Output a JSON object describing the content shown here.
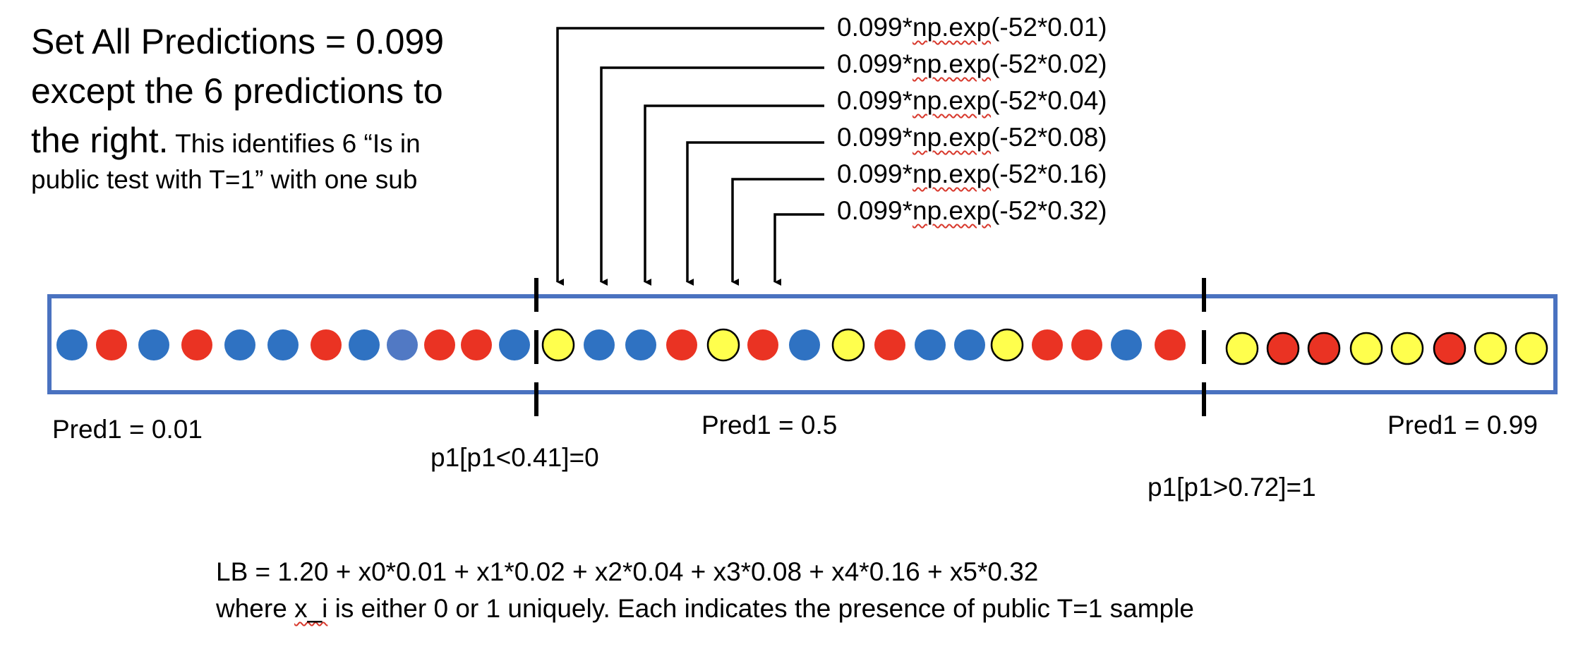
{
  "title": {
    "line1": "Set All Predictions = 0.099",
    "line2": "except the 6 predictions to",
    "line3_main": "the right.",
    "line3_small": " This identifies 6 “Is in",
    "line4": "public test with T=1” with one sub"
  },
  "formulas": [
    {
      "prefix": "0.099*",
      "func": "np.exp",
      "suffix": "(-52*0.01)"
    },
    {
      "prefix": "0.099*",
      "func": "np.exp",
      "suffix": "(-52*0.02)"
    },
    {
      "prefix": "0.099*",
      "func": "np.exp",
      "suffix": "(-52*0.04)"
    },
    {
      "prefix": "0.099*",
      "func": "np.exp",
      "suffix": "(-52*0.08)"
    },
    {
      "prefix": "0.099*",
      "func": "np.exp",
      "suffix": "(-52*0.16)"
    },
    {
      "prefix": "0.099*",
      "func": "np.exp",
      "suffix": "(-52*0.32)"
    }
  ],
  "labels": {
    "pred_low": "Pred1 = 0.01",
    "pred_mid": "Pred1 = 0.5",
    "pred_high": "Pred1 = 0.99",
    "threshold_low": "p1[p1<0.41]=0",
    "threshold_high": "p1[p1>0.72]=1"
  },
  "lb": {
    "equation": "LB = 1.20 + x0*0.01 + x1*0.02 + x2*0.04 + x3*0.08 + x4*0.16 + x5*0.32",
    "explain_pre": "where ",
    "explain_var": "x_i",
    "explain_post": " is either 0 or 1 uniquely. Each indicates the presence of public T=1 sample"
  },
  "colors": {
    "box": "#4a72c0",
    "blue": "#2f72c2",
    "blue_light": "#5179c4",
    "red": "#ea3323",
    "yellow": "#ffff4d",
    "outline": "#000000"
  },
  "dots": [
    "blue",
    "red",
    "blue",
    "red",
    "blue",
    "blue",
    "red",
    "blue",
    "blue_light",
    "red",
    "red",
    "blue",
    "yellow",
    "blue",
    "blue",
    "red",
    "yellow",
    "red",
    "blue",
    "yellow",
    "red",
    "blue",
    "blue",
    "yellow",
    "red",
    "red",
    "blue",
    "red",
    "yellow",
    "red_ring",
    "red_ring",
    "yellow",
    "yellow",
    "red_ring",
    "yellow",
    "yellow"
  ]
}
